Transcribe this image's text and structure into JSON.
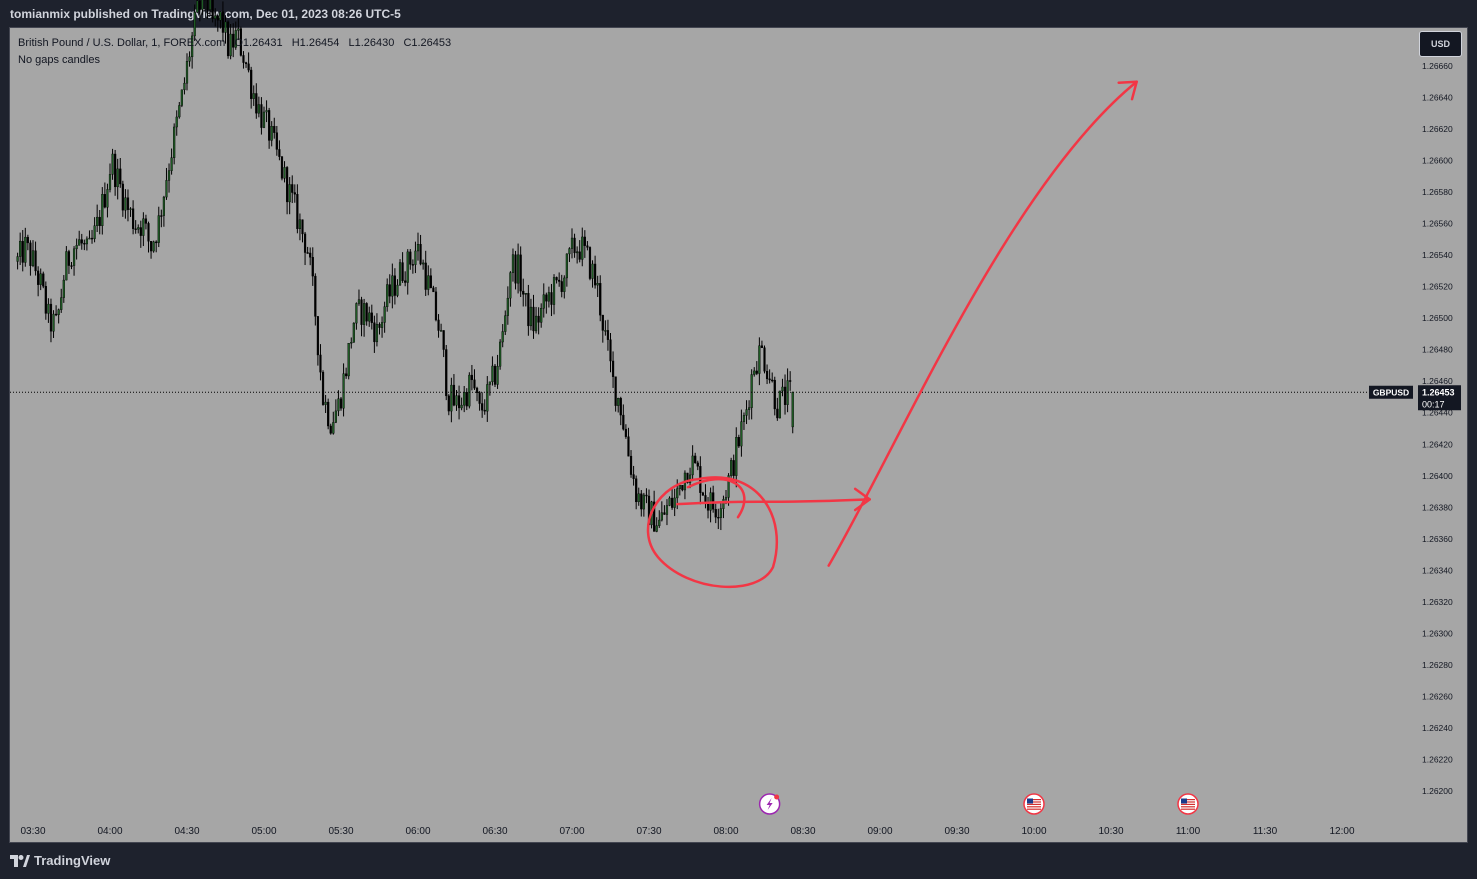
{
  "header": {
    "publish_line": "tomianmix published on TradingView.com, Dec 01, 2023 08:26 UTC-5"
  },
  "legend": {
    "symbol_line": "British Pound / U.S. Dollar, 1, FOREX.com",
    "open": "O1.26431",
    "high": "H1.26454",
    "low": "L1.26430",
    "close": "C1.26453",
    "note": "No gaps candles"
  },
  "currency_button": "USD",
  "price_tag": {
    "symbol": "GBPUSD",
    "price": "1.26453",
    "countdown": "00:17"
  },
  "footer": {
    "logo_text": "TradingView"
  },
  "colors": {
    "chart_background": "#a6a6a6",
    "candle_up": "#1e5b24",
    "candle_down": "#000000",
    "annotation": "#f23645",
    "page_background": "#1e222d"
  },
  "icons": [
    "lightning-event-icon",
    "us-flag-event-icon",
    "us-flag-event-icon"
  ],
  "chart_data": {
    "type": "candlestick",
    "series": [
      {
        "name": "GBPUSD",
        "x_start": "03:24",
        "interval_minutes": 1,
        "close_path": [
          1.26536,
          1.26545,
          1.26535,
          1.2652,
          1.26498,
          1.26495,
          1.2653,
          1.26545,
          1.26548,
          1.2654,
          1.26555,
          1.26575,
          1.266,
          1.26585,
          1.2657,
          1.2656,
          1.2656,
          1.26545,
          1.2656,
          1.2659,
          1.26615,
          1.2664,
          1.2667,
          1.26695,
          1.26705,
          1.26685,
          1.2669,
          1.2667,
          1.2668,
          1.26665,
          1.26645,
          1.2663,
          1.2662,
          1.26605,
          1.2659,
          1.26575,
          1.2656,
          1.26545,
          1.26505,
          1.2645,
          1.26435,
          1.26445,
          1.2647,
          1.265,
          1.26505,
          1.265,
          1.2649,
          1.2651,
          1.2652,
          1.2653,
          1.26535,
          1.26545,
          1.2653,
          1.2651,
          1.2649,
          1.2645,
          1.26445,
          1.2645,
          1.2646,
          1.2644,
          1.2645,
          1.26465,
          1.2649,
          1.26535,
          1.2653,
          1.26505,
          1.26495,
          1.26505,
          1.26515,
          1.2652,
          1.2653,
          1.26545,
          1.26545,
          1.26535,
          1.2652,
          1.2649,
          1.2646,
          1.26445,
          1.26415,
          1.2639,
          1.2638,
          1.26375,
          1.2637,
          1.2638,
          1.26385,
          1.264,
          1.2641,
          1.264,
          1.26385,
          1.2638,
          1.26385,
          1.264,
          1.2642,
          1.2644,
          1.2647,
          1.2648,
          1.26465,
          1.26445,
          1.2645,
          1.26453
        ]
      }
    ],
    "x_ticks": [
      "03:30",
      "04:00",
      "04:30",
      "05:00",
      "05:30",
      "06:00",
      "06:30",
      "07:00",
      "07:30",
      "08:00",
      "08:30",
      "09:00",
      "09:30",
      "10:00",
      "10:30",
      "11:00",
      "11:30",
      "12:00"
    ],
    "y_ticks": [
      "1.26660",
      "1.26640",
      "1.26620",
      "1.26600",
      "1.26580",
      "1.26560",
      "1.26540",
      "1.26520",
      "1.26500",
      "1.26480",
      "1.26460",
      "1.26440",
      "1.26420",
      "1.26400",
      "1.26380",
      "1.26360",
      "1.26340",
      "1.26320",
      "1.26300",
      "1.26280",
      "1.26260",
      "1.26240",
      "1.26220",
      "1.26200"
    ],
    "ylim": [
      1.26188,
      1.26705
    ],
    "last_price": 1.26453,
    "event_markers": [
      {
        "time": "08:17",
        "icon": "lightning-event-icon"
      },
      {
        "time": "10:00",
        "icon": "us-flag-event-icon"
      },
      {
        "time": "11:00",
        "icon": "us-flag-event-icon"
      }
    ],
    "annotations": [
      {
        "shape": "ellipse",
        "around_time": "08:00",
        "around_price": 1.26375
      },
      {
        "shape": "arrow",
        "from": [
          "07:41",
          1.26382
        ],
        "to": [
          "08:56",
          1.26385
        ]
      },
      {
        "shape": "arrow",
        "from": [
          "08:40",
          1.26343
        ],
        "to": [
          "10:40",
          1.2665
        ]
      }
    ],
    "grid": false
  }
}
